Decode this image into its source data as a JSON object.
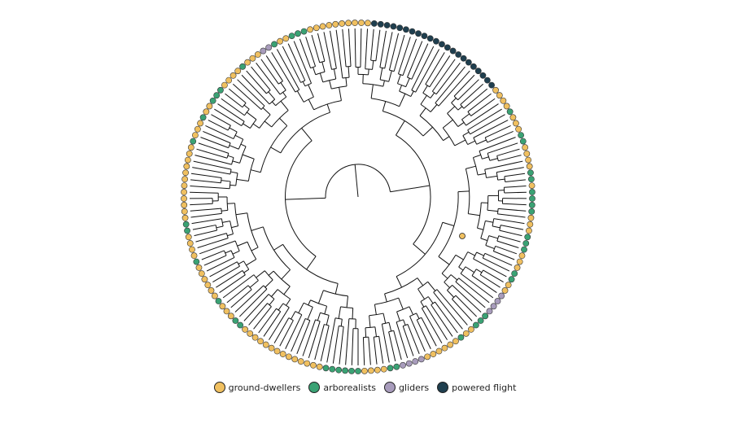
{
  "figure": {
    "type": "circular-phylogeny",
    "node_marker_color": "#f0c060",
    "branch_color": "#111111"
  },
  "legend": [
    {
      "label": "ground-dwellers",
      "color": "#f0c060",
      "icon": "circle-swatch"
    },
    {
      "label": "arborealists",
      "color": "#3aa274",
      "icon": "circle-swatch"
    },
    {
      "label": "gliders",
      "color": "#a89cbc",
      "icon": "circle-swatch"
    },
    {
      "label": "powered flight",
      "color": "#1f3f4f",
      "icon": "circle-swatch"
    }
  ],
  "tips": [
    {
      "n": 6,
      "state": "arborealists"
    },
    {
      "n": 14,
      "state": "ground-dwellers"
    },
    {
      "n": 2,
      "state": "arborealists"
    },
    {
      "n": 3,
      "state": "ground-dwellers"
    },
    {
      "n": 1,
      "state": "arborealists"
    },
    {
      "n": 6,
      "state": "ground-dwellers"
    },
    {
      "n": 1,
      "state": "arborealists"
    },
    {
      "n": 4,
      "state": "ground-dwellers"
    },
    {
      "n": 2,
      "state": "arborealists"
    },
    {
      "n": 12,
      "state": "ground-dwellers"
    },
    {
      "n": 1,
      "state": "arborealists"
    },
    {
      "n": 3,
      "state": "ground-dwellers"
    },
    {
      "n": 1,
      "state": "arborealists"
    },
    {
      "n": 2,
      "state": "ground-dwellers"
    },
    {
      "n": 3,
      "state": "arborealists"
    },
    {
      "n": 4,
      "state": "ground-dwellers"
    },
    {
      "n": 1,
      "state": "arborealists"
    },
    {
      "n": 3,
      "state": "ground-dwellers"
    },
    {
      "n": 2,
      "state": "gliders"
    },
    {
      "n": 1,
      "state": "arborealists"
    },
    {
      "n": 2,
      "state": "ground-dwellers"
    },
    {
      "n": 3,
      "state": "arborealists"
    },
    {
      "n": 10,
      "state": "ground-dwellers"
    },
    {
      "n": 22,
      "state": "powered flight"
    },
    {
      "n": 4,
      "state": "ground-dwellers"
    },
    {
      "n": 1,
      "state": "arborealists"
    },
    {
      "n": 3,
      "state": "ground-dwellers"
    },
    {
      "n": 2,
      "state": "arborealists"
    },
    {
      "n": 4,
      "state": "ground-dwellers"
    },
    {
      "n": 2,
      "state": "arborealists"
    },
    {
      "n": 1,
      "state": "ground-dwellers"
    },
    {
      "n": 4,
      "state": "arborealists"
    },
    {
      "n": 3,
      "state": "ground-dwellers"
    },
    {
      "n": 3,
      "state": "arborealists"
    },
    {
      "n": 3,
      "state": "ground-dwellers"
    },
    {
      "n": 2,
      "state": "arborealists"
    },
    {
      "n": 2,
      "state": "ground-dwellers"
    },
    {
      "n": 4,
      "state": "gliders"
    },
    {
      "n": 3,
      "state": "arborealists"
    },
    {
      "n": 2,
      "state": "ground-dwellers"
    },
    {
      "n": 1,
      "state": "arborealists"
    },
    {
      "n": 6,
      "state": "ground-dwellers"
    },
    {
      "n": 4,
      "state": "gliders"
    },
    {
      "n": 2,
      "state": "arborealists"
    },
    {
      "n": 4,
      "state": "ground-dwellers"
    }
  ]
}
